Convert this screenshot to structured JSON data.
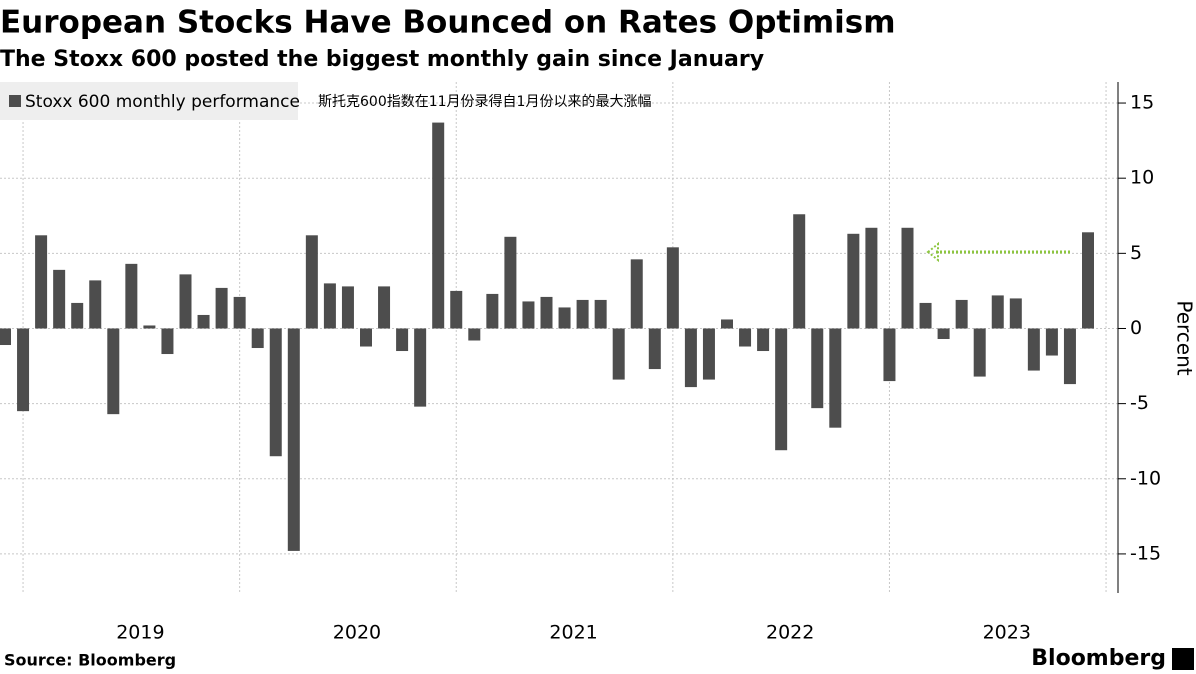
{
  "chart_data": {
    "type": "bar",
    "title": "European Stocks Have Bounced on Rates Optimism",
    "subtitle": "The Stoxx 600 posted the biggest monthly gain since January",
    "series": [
      {
        "name": "Stoxx 600 monthly performance",
        "color": "#4d4d4d",
        "values": [
          -1.1,
          -5.5,
          6.2,
          3.9,
          1.7,
          3.2,
          -5.7,
          4.3,
          0.2,
          -1.7,
          3.6,
          0.9,
          2.7,
          2.1,
          -1.3,
          -8.5,
          -14.8,
          6.2,
          3.0,
          2.8,
          -1.2,
          2.8,
          -1.5,
          -5.2,
          13.7,
          2.5,
          -0.8,
          2.3,
          6.1,
          1.8,
          2.1,
          1.4,
          1.9,
          1.9,
          -3.4,
          4.6,
          -2.7,
          5.4,
          -3.9,
          -3.4,
          0.6,
          -1.2,
          -1.5,
          -8.1,
          7.6,
          -5.3,
          -6.6,
          6.3,
          6.7,
          -3.5,
          6.7,
          1.7,
          -0.7,
          1.9,
          -3.2,
          2.2,
          2.0,
          -2.8,
          -1.8,
          -3.7,
          6.4
        ]
      }
    ],
    "year_labels": [
      "2019",
      "2020",
      "2021",
      "2022",
      "2023"
    ],
    "y_axis_label": "Percent",
    "annotation": "斯托克600指数在11月份录得自1月份以来的最大涨幅",
    "ylim": [
      -17.6,
      16.4
    ],
    "yticks": [
      -15,
      -10,
      -5,
      0,
      5,
      10,
      15
    ],
    "grid": true,
    "source": "Source: Bloomberg",
    "brand": "Bloomberg"
  }
}
